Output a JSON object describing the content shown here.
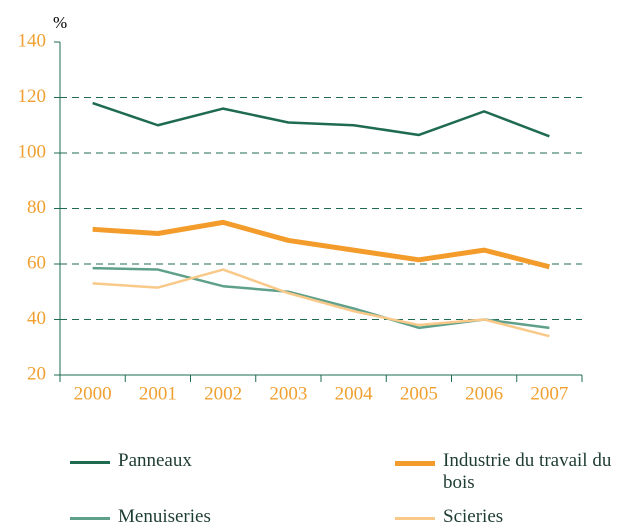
{
  "chart_data": {
    "type": "line",
    "y_label": "%",
    "categories": [
      "2000",
      "2001",
      "2002",
      "2003",
      "2004",
      "2005",
      "2006",
      "2007"
    ],
    "series": [
      {
        "name": "Panneaux",
        "color": "#1e6b4f",
        "width": 2.5,
        "values": [
          118,
          110,
          116,
          111,
          110,
          106.5,
          115,
          106
        ]
      },
      {
        "name": "Industrie du travail du bois",
        "color": "#f39c2c",
        "width": 5,
        "values": [
          72.5,
          71,
          75,
          68.5,
          65,
          61.5,
          65,
          59
        ]
      },
      {
        "name": "Menuiseries",
        "color": "#5fa08a",
        "width": 2.5,
        "values": [
          58.5,
          58,
          52,
          50,
          44,
          37,
          40,
          37
        ]
      },
      {
        "name": "Scieries",
        "color": "#f9c98a",
        "width": 2.5,
        "values": [
          53,
          51.5,
          58,
          49.5,
          43,
          38,
          40,
          34
        ]
      }
    ],
    "ylim": [
      20,
      140
    ],
    "yticks": [
      20,
      40,
      60,
      80,
      100,
      120,
      140
    ],
    "grid": true
  }
}
